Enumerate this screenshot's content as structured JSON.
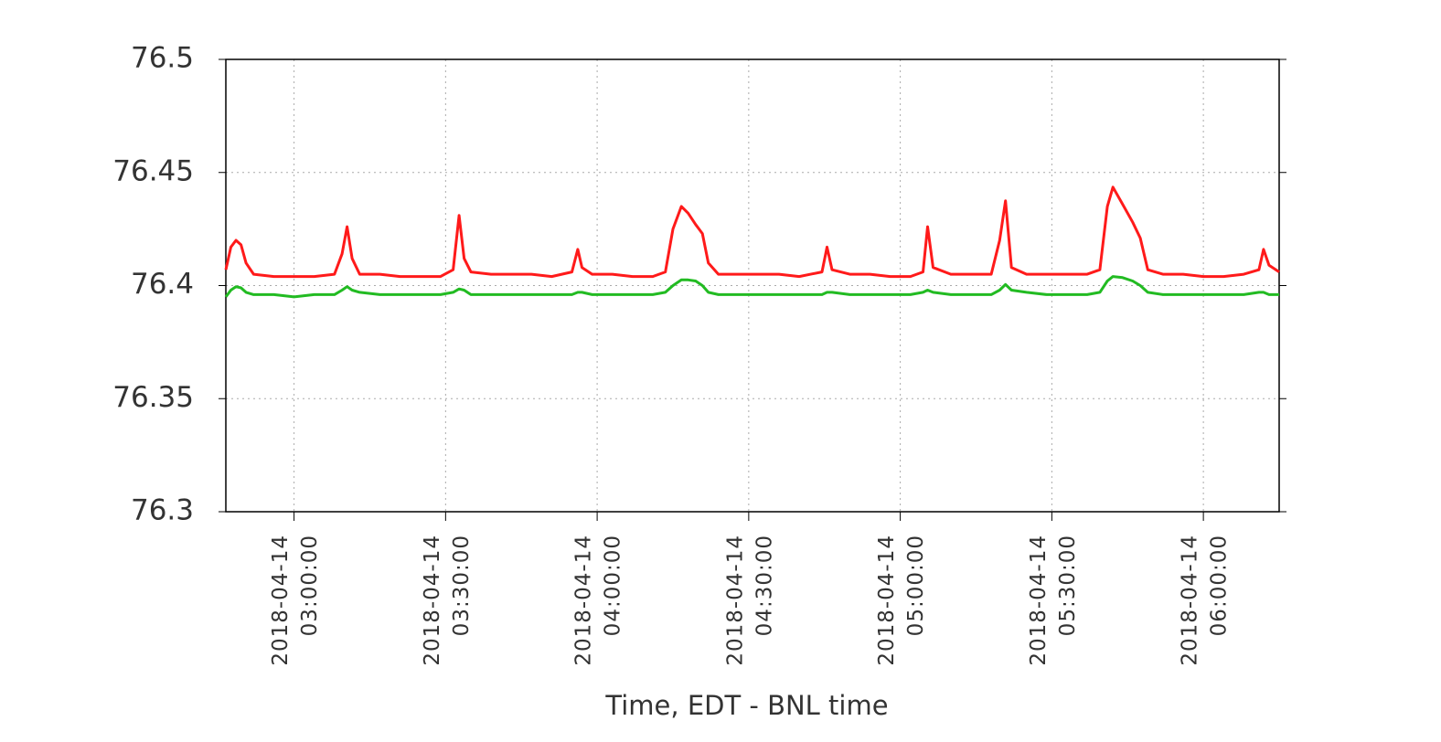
{
  "chart_data": {
    "type": "line",
    "x_label": "Time, EDT - BNL time",
    "xlim": [
      "2018-04-14 02:46:30",
      "2018-04-14 06:15:00"
    ],
    "xticks": [
      {
        "value": "2018-04-14 03:00:00",
        "label": [
          "2018-04-14",
          "03:00:00"
        ]
      },
      {
        "value": "2018-04-14 03:30:00",
        "label": [
          "2018-04-14",
          "03:30:00"
        ]
      },
      {
        "value": "2018-04-14 04:00:00",
        "label": [
          "2018-04-14",
          "04:00:00"
        ]
      },
      {
        "value": "2018-04-14 04:30:00",
        "label": [
          "2018-04-14",
          "04:30:00"
        ]
      },
      {
        "value": "2018-04-14 05:00:00",
        "label": [
          "2018-04-14",
          "05:00:00"
        ]
      },
      {
        "value": "2018-04-14 05:30:00",
        "label": [
          "2018-04-14",
          "05:30:00"
        ]
      },
      {
        "value": "2018-04-14 06:00:00",
        "label": [
          "2018-04-14",
          "06:00:00"
        ]
      }
    ],
    "ylim": [
      76.3,
      76.5
    ],
    "yticks": [
      76.3,
      76.35,
      76.4,
      76.45,
      76.5
    ],
    "grid": true,
    "x": [
      "2018-04-14 02:46:30",
      "2018-04-14 02:47:30",
      "2018-04-14 02:48:30",
      "2018-04-14 02:49:30",
      "2018-04-14 02:50:30",
      "2018-04-14 02:52:00",
      "2018-04-14 02:56:00",
      "2018-04-14 03:00:00",
      "2018-04-14 03:04:00",
      "2018-04-14 03:08:00",
      "2018-04-14 03:09:30",
      "2018-04-14 03:10:30",
      "2018-04-14 03:11:30",
      "2018-04-14 03:13:00",
      "2018-04-14 03:17:00",
      "2018-04-14 03:21:00",
      "2018-04-14 03:25:00",
      "2018-04-14 03:29:00",
      "2018-04-14 03:31:30",
      "2018-04-14 03:32:40",
      "2018-04-14 03:33:40",
      "2018-04-14 03:35:00",
      "2018-04-14 03:39:00",
      "2018-04-14 03:43:00",
      "2018-04-14 03:47:00",
      "2018-04-14 03:51:00",
      "2018-04-14 03:55:00",
      "2018-04-14 03:56:10",
      "2018-04-14 03:57:00",
      "2018-04-14 03:59:00",
      "2018-04-14 04:03:00",
      "2018-04-14 04:07:00",
      "2018-04-14 04:11:00",
      "2018-04-14 04:13:30",
      "2018-04-14 04:15:00",
      "2018-04-14 04:16:40",
      "2018-04-14 04:18:00",
      "2018-04-14 04:19:30",
      "2018-04-14 04:20:50",
      "2018-04-14 04:22:00",
      "2018-04-14 04:24:00",
      "2018-04-14 04:28:00",
      "2018-04-14 04:32:00",
      "2018-04-14 04:36:00",
      "2018-04-14 04:40:00",
      "2018-04-14 04:44:30",
      "2018-04-14 04:45:30",
      "2018-04-14 04:46:30",
      "2018-04-14 04:50:00",
      "2018-04-14 04:54:00",
      "2018-04-14 04:58:00",
      "2018-04-14 05:02:00",
      "2018-04-14 05:04:30",
      "2018-04-14 05:05:25",
      "2018-04-14 05:06:30",
      "2018-04-14 05:10:00",
      "2018-04-14 05:14:00",
      "2018-04-14 05:18:00",
      "2018-04-14 05:19:40",
      "2018-04-14 05:20:50",
      "2018-04-14 05:22:00",
      "2018-04-14 05:25:00",
      "2018-04-14 05:29:00",
      "2018-04-14 05:33:00",
      "2018-04-14 05:37:00",
      "2018-04-14 05:39:30",
      "2018-04-14 05:41:00",
      "2018-04-14 05:42:06",
      "2018-04-14 05:44:00",
      "2018-04-14 05:46:00",
      "2018-04-14 05:47:30",
      "2018-04-14 05:49:00",
      "2018-04-14 05:52:00",
      "2018-04-14 05:56:00",
      "2018-04-14 06:00:00",
      "2018-04-14 06:04:00",
      "2018-04-14 06:08:00",
      "2018-04-14 06:11:00",
      "2018-04-14 06:11:54",
      "2018-04-14 06:13:00",
      "2018-04-14 06:15:00"
    ],
    "series": [
      {
        "color": "#ff1a1a",
        "values": [
          76.407,
          76.417,
          76.42,
          76.418,
          76.41,
          76.405,
          76.404,
          76.404,
          76.404,
          76.405,
          76.414,
          76.426,
          76.412,
          76.405,
          76.405,
          76.404,
          76.404,
          76.404,
          76.407,
          76.431,
          76.412,
          76.406,
          76.405,
          76.405,
          76.405,
          76.404,
          76.406,
          76.416,
          76.408,
          76.405,
          76.405,
          76.404,
          76.404,
          76.406,
          76.425,
          76.435,
          76.432,
          76.427,
          76.423,
          76.41,
          76.405,
          76.405,
          76.405,
          76.405,
          76.404,
          76.406,
          76.417,
          76.407,
          76.405,
          76.405,
          76.404,
          76.404,
          76.406,
          76.426,
          76.408,
          76.405,
          76.405,
          76.405,
          76.42,
          76.4375,
          76.408,
          76.405,
          76.405,
          76.405,
          76.405,
          76.407,
          76.435,
          76.4435,
          76.436,
          76.428,
          76.421,
          76.407,
          76.405,
          76.405,
          76.404,
          76.404,
          76.405,
          76.407,
          76.416,
          76.409,
          76.406
        ]
      },
      {
        "color": "#22bb22",
        "values": [
          76.395,
          76.398,
          76.3995,
          76.399,
          76.397,
          76.396,
          76.396,
          76.395,
          76.396,
          76.396,
          76.398,
          76.3995,
          76.398,
          76.397,
          76.396,
          76.396,
          76.396,
          76.396,
          76.397,
          76.3985,
          76.398,
          76.396,
          76.396,
          76.396,
          76.396,
          76.396,
          76.396,
          76.397,
          76.397,
          76.396,
          76.396,
          76.396,
          76.396,
          76.397,
          76.4,
          76.4025,
          76.4025,
          76.402,
          76.4,
          76.397,
          76.396,
          76.396,
          76.396,
          76.396,
          76.396,
          76.396,
          76.397,
          76.397,
          76.396,
          76.396,
          76.396,
          76.396,
          76.397,
          76.398,
          76.397,
          76.396,
          76.396,
          76.396,
          76.398,
          76.4005,
          76.398,
          76.397,
          76.396,
          76.396,
          76.396,
          76.397,
          76.402,
          76.404,
          76.4035,
          76.402,
          76.4,
          76.397,
          76.396,
          76.396,
          76.396,
          76.396,
          76.396,
          76.397,
          76.397,
          76.396,
          76.396
        ]
      }
    ]
  }
}
